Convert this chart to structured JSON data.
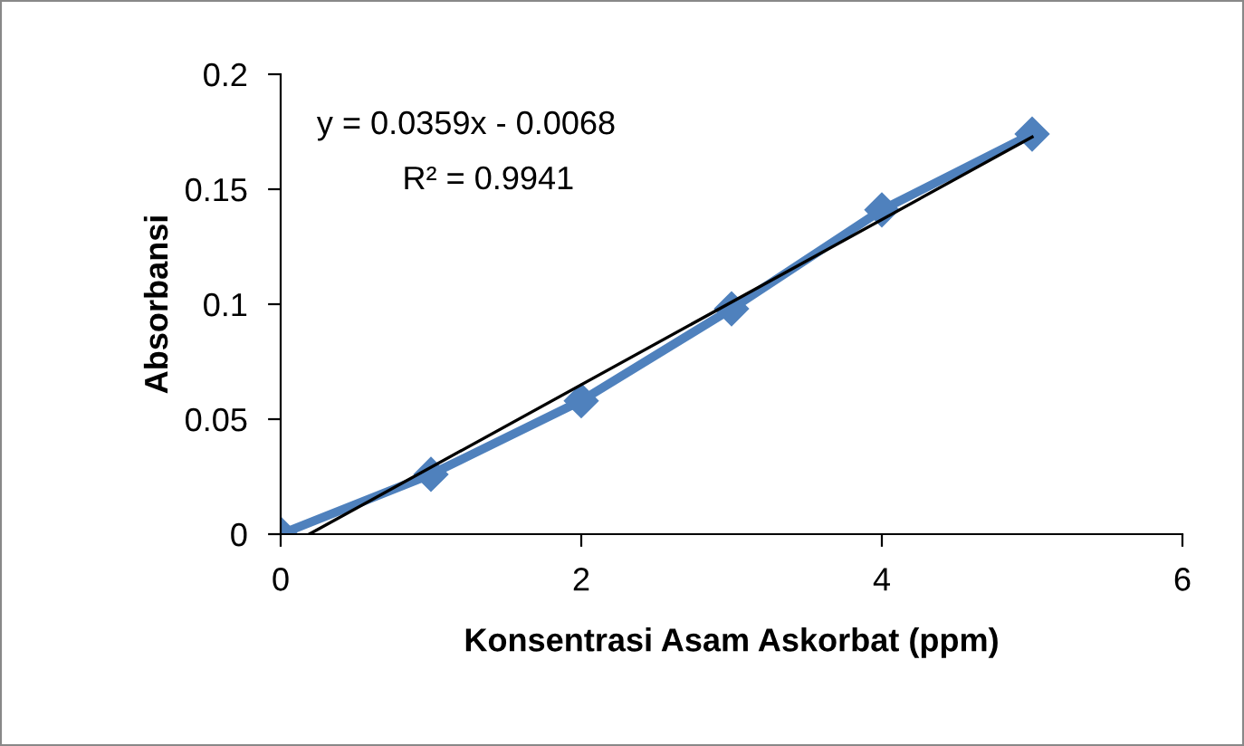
{
  "chart_data": {
    "type": "line",
    "xlabel": "Konsentrasi Asam Askorbat (ppm)",
    "ylabel": "Absorbansi",
    "x": [
      0,
      1,
      2,
      3,
      4,
      5
    ],
    "series": [
      {
        "color": "#4f81bd",
        "values": [
          0,
          0.026,
          0.058,
          0.098,
          0.141,
          0.174
        ],
        "marker": "diamond"
      },
      {
        "type": "line",
        "color": "#000000",
        "x": [
          0.19,
          5
        ],
        "values": [
          0,
          0.1727
        ],
        "marker": "none"
      }
    ],
    "xlim": [
      0,
      6
    ],
    "xticks": [
      0,
      2,
      4,
      6
    ],
    "ylim": [
      0,
      0.2
    ],
    "yticks": [
      0,
      0.05,
      0.1,
      0.15,
      0.2
    ],
    "annotations": [
      "y = 0.0359x - 0.0068",
      "R² = 0.9941"
    ],
    "grid": false,
    "legend": false
  }
}
